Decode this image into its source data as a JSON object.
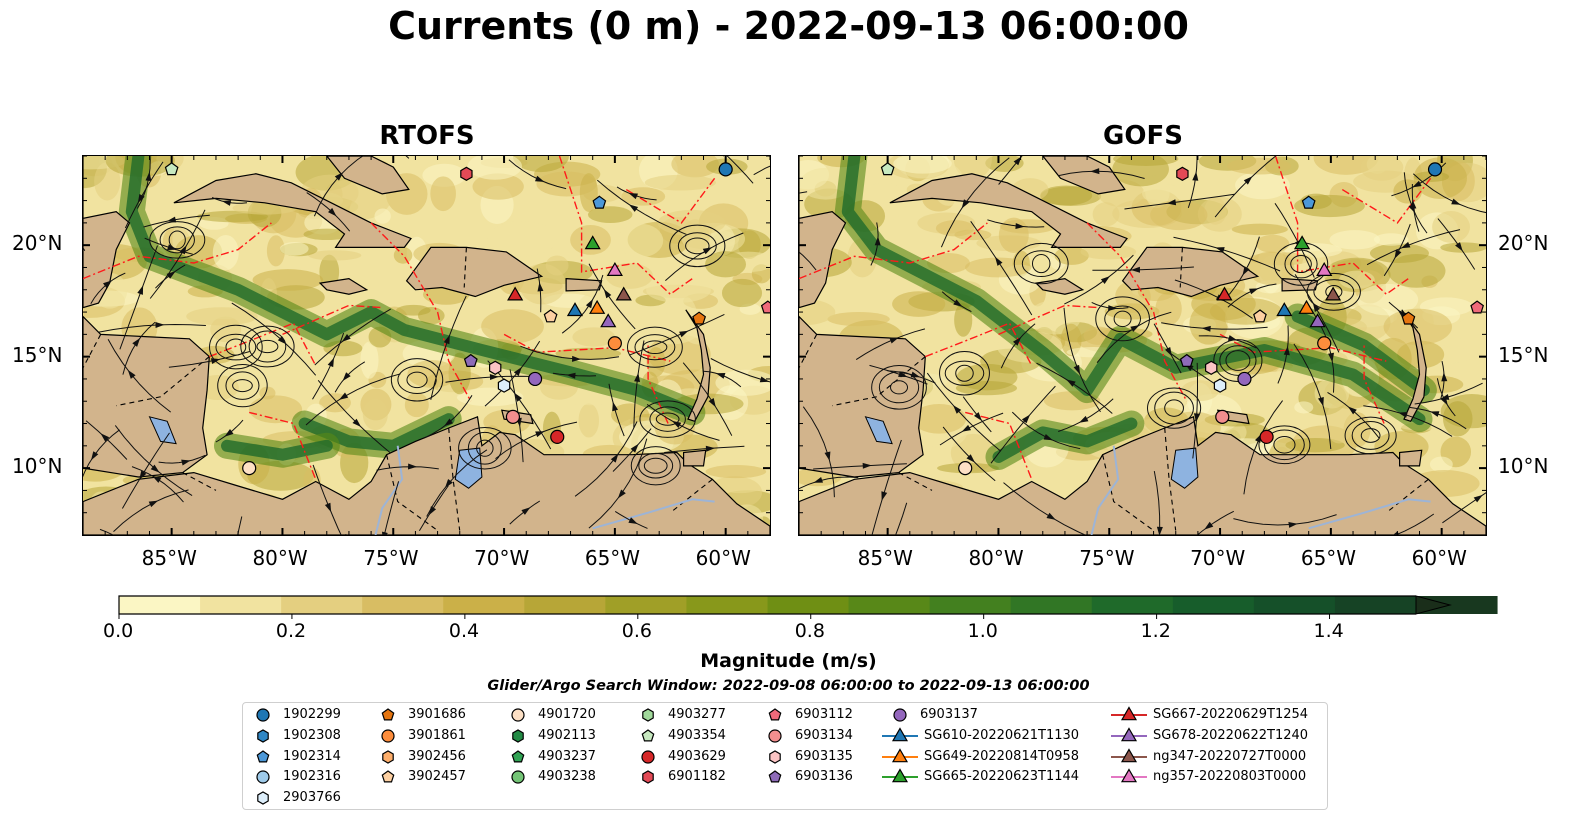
{
  "title": "Currents (0 m) - 2022-09-13 06:00:00",
  "panels": [
    {
      "title": "RTOFS"
    },
    {
      "title": "GOFS"
    }
  ],
  "axes": {
    "lon_ticks": [
      "85°W",
      "80°W",
      "75°W",
      "70°W",
      "65°W",
      "60°W"
    ],
    "lat_ticks": [
      "20°N",
      "15°N",
      "10°N"
    ],
    "lon_range": [
      -89,
      -58
    ],
    "lat_range": [
      7,
      24
    ]
  },
  "colorbar": {
    "label": "Magnitude (m/s)",
    "ticks": [
      "0.0",
      "0.2",
      "0.4",
      "0.6",
      "0.8",
      "1.0",
      "1.2",
      "1.4"
    ],
    "range": [
      0,
      1.5
    ],
    "extend": "max",
    "colors": [
      "#fbf6c4",
      "#f1e3a0",
      "#e4cf80",
      "#d8bd63",
      "#cbb048",
      "#b7a637",
      "#a09f27",
      "#88981b",
      "#6f8f14",
      "#588818",
      "#43801f",
      "#317625",
      "#1f6a2a",
      "#175d2b",
      "#155029",
      "#164325",
      "#18381f",
      "#1a2e1a"
    ]
  },
  "search_window": "Glider/Argo Search Window: 2022-09-08 06:00:00 to 2022-09-13 06:00:00",
  "land_color": "#d2b48c",
  "lake_color": "#8eb3e0",
  "legend": {
    "columns": [
      [
        {
          "label": "1902299",
          "marker": "circle",
          "color": "#1f77b4"
        },
        {
          "label": "1902308",
          "marker": "hexagon",
          "color": "#2f86c4"
        },
        {
          "label": "1902314",
          "marker": "pentagon",
          "color": "#4c98d8"
        },
        {
          "label": "1902316",
          "marker": "circle",
          "color": "#9ecae9"
        },
        {
          "label": "2903766",
          "marker": "hexagon",
          "color": "#ddeefa"
        }
      ],
      [
        {
          "label": "3901686",
          "marker": "pentagon",
          "color": "#e6750f"
        },
        {
          "label": "3901861",
          "marker": "circle",
          "color": "#fd8d3c"
        },
        {
          "label": "3902456",
          "marker": "hexagon",
          "color": "#fdae6b"
        },
        {
          "label": "3902457",
          "marker": "pentagon",
          "color": "#fdd0a2"
        }
      ],
      [
        {
          "label": "4901720",
          "marker": "circle",
          "color": "#fde0c5"
        },
        {
          "label": "4902113",
          "marker": "hexagon",
          "color": "#238b45"
        },
        {
          "label": "4903237",
          "marker": "pentagon",
          "color": "#31a354"
        },
        {
          "label": "4903238",
          "marker": "circle",
          "color": "#74c476"
        }
      ],
      [
        {
          "label": "4903277",
          "marker": "hexagon",
          "color": "#a1d99b"
        },
        {
          "label": "4903354",
          "marker": "pentagon",
          "color": "#c7e9c0"
        },
        {
          "label": "4903629",
          "marker": "circle",
          "color": "#d62728"
        },
        {
          "label": "6901182",
          "marker": "hexagon",
          "color": "#e34a56"
        }
      ],
      [
        {
          "label": "6903112",
          "marker": "pentagon",
          "color": "#ef6a7a"
        },
        {
          "label": "6903134",
          "marker": "circle",
          "color": "#f28e8e"
        },
        {
          "label": "6903135",
          "marker": "hexagon",
          "color": "#fbc4c4"
        },
        {
          "label": "6903136",
          "marker": "pentagon",
          "color": "#8e6bb8"
        }
      ],
      [
        {
          "label": "6903137",
          "marker": "circle",
          "color": "#9467bd"
        },
        {
          "label": "SG610-20220621T1130",
          "marker": "triangle-line",
          "color": "#1f77b4"
        },
        {
          "label": "SG649-20220814T0958",
          "marker": "triangle-line",
          "color": "#ff7f0e"
        },
        {
          "label": "SG665-20220623T1144",
          "marker": "triangle-line",
          "color": "#2ca02c"
        }
      ],
      [
        {
          "label": "SG667-20220629T1254",
          "marker": "triangle-line",
          "color": "#d62728"
        },
        {
          "label": "SG678-20220622T1240",
          "marker": "triangle-line",
          "color": "#9467bd"
        },
        {
          "label": "ng347-20220727T0000",
          "marker": "triangle-line",
          "color": "#8c564b"
        },
        {
          "label": "ng357-20220803T0000",
          "marker": "triangle-line",
          "color": "#e377c2"
        }
      ]
    ]
  },
  "platforms": [
    {
      "id": "1902299",
      "lon": -60.0,
      "lat": 23.4
    },
    {
      "id": "6901182",
      "lon": -71.7,
      "lat": 23.2
    },
    {
      "id": "4903354",
      "lon": -85.0,
      "lat": 23.4
    },
    {
      "id": "1902314",
      "lon": -65.7,
      "lat": 21.9
    },
    {
      "id": "SG665-20220623T1144",
      "lon": -66.0,
      "lat": 20.1
    },
    {
      "id": "ng357-20220803T0000",
      "lon": -65.0,
      "lat": 18.9
    },
    {
      "id": "SG667-20220629T1254",
      "lon": -69.5,
      "lat": 17.8
    },
    {
      "id": "ng347-20220727T0000",
      "lon": -64.6,
      "lat": 17.8
    },
    {
      "id": "SG610-20220621T1130",
      "lon": -66.8,
      "lat": 17.1
    },
    {
      "id": "SG649-20220814T0958",
      "lon": -65.8,
      "lat": 17.2
    },
    {
      "id": "SG678-20220622T1240",
      "lon": -65.3,
      "lat": 16.6
    },
    {
      "id": "3902457",
      "lon": -67.9,
      "lat": 16.8
    },
    {
      "id": "3901686",
      "lon": -61.2,
      "lat": 16.7
    },
    {
      "id": "6903112",
      "lon": -58.1,
      "lat": 17.2
    },
    {
      "id": "3901861",
      "lon": -65.0,
      "lat": 15.6
    },
    {
      "id": "6903136",
      "lon": -71.5,
      "lat": 14.8
    },
    {
      "id": "6903135",
      "lon": -70.4,
      "lat": 14.5
    },
    {
      "id": "6903137",
      "lon": -68.6,
      "lat": 14.0
    },
    {
      "id": "2903766",
      "lon": -70.0,
      "lat": 13.7
    },
    {
      "id": "6903134",
      "lon": -69.6,
      "lat": 12.3
    },
    {
      "id": "4903629",
      "lon": -67.6,
      "lat": 11.4
    },
    {
      "id": "4901720",
      "lon": -81.5,
      "lat": 10.0
    }
  ]
}
